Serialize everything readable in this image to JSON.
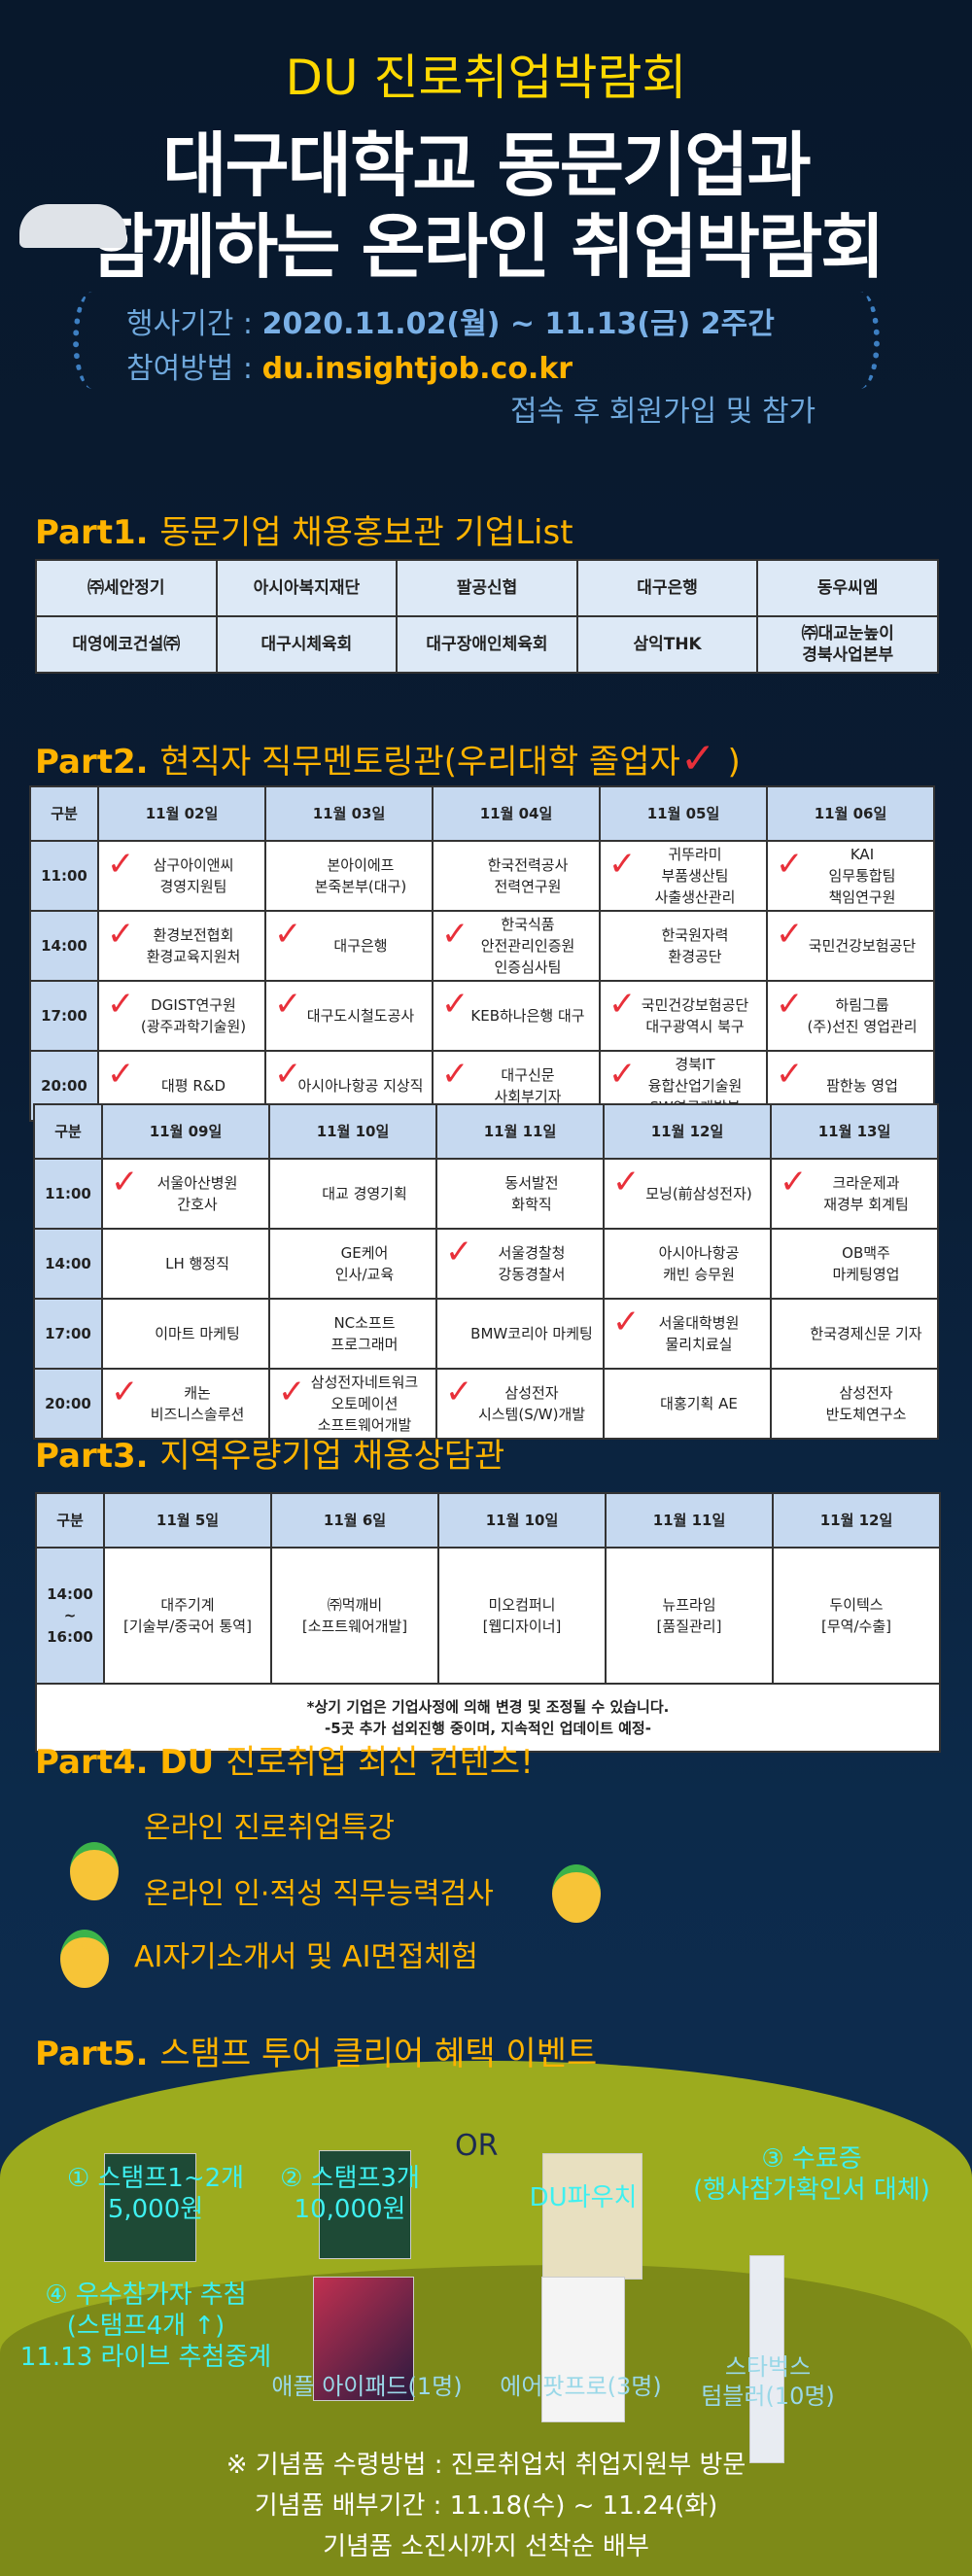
{
  "header": {
    "subtitle": "DU 진로취업박람회",
    "title_line1": "대구대학교 동문기업과",
    "title_line2": "함께하는 온라인 취업박람회",
    "period_label": "행사기간 : ",
    "period_value": "2020.11.02(월) ~ 11.13(금) 2주간",
    "method_label": "참여방법 : ",
    "method_url": "du.insightjob.co.kr",
    "method_note": "접속 후 회원가입 및 참가"
  },
  "part1": {
    "title_bold": "Part1.",
    "title": "동문기업 채용홍보관 기업List",
    "rows": [
      [
        "㈜세안정기",
        "아시아복지재단",
        "팔공신협",
        "대구은행",
        "동우씨엠"
      ],
      [
        "대영에코건설㈜",
        "대구시체육회",
        "대구장애인체육회",
        "삼익THK",
        "㈜대교눈높이 경북사업본부"
      ]
    ]
  },
  "part2": {
    "title_bold": "Part2.",
    "title": "현직자 직무멘토링관(우리대학 졸업자",
    "title_end": ")",
    "check_color": "#e8303a",
    "weeks": [
      {
        "headers": [
          "구분",
          "11월 02일",
          "11월 03일",
          "11월 04일",
          "11월 05일",
          "11월 06일"
        ],
        "rows": [
          {
            "time": "11:00",
            "cells": [
              {
                "t": [
                  "삼구아이앤씨",
                  "경영지원팀"
                ],
                "c": true
              },
              {
                "t": [
                  "본아이에프",
                  "본죽본부(대구)"
                ]
              },
              {
                "t": [
                  "한국전력공사",
                  "전력연구원"
                ]
              },
              {
                "t": [
                  "귀뚜라미",
                  "부품생산팀",
                  "사출생산관리"
                ],
                "c": true
              },
              {
                "t": [
                  "KAI",
                  "임무통합팀",
                  "책임연구원"
                ],
                "c": true
              }
            ]
          },
          {
            "time": "14:00",
            "cells": [
              {
                "t": [
                  "환경보전협회",
                  "환경교육지원처"
                ],
                "c": true
              },
              {
                "t": [
                  "대구은행"
                ],
                "c": true
              },
              {
                "t": [
                  "한국식품",
                  "안전관리인증원",
                  "인증심사팀"
                ],
                "c": true
              },
              {
                "t": [
                  "한국원자력",
                  "환경공단"
                ]
              },
              {
                "t": [
                  "국민건강보험공단"
                ],
                "c": true
              }
            ]
          },
          {
            "time": "17:00",
            "cells": [
              {
                "t": [
                  "DGIST연구원",
                  "(광주과학기술원)"
                ],
                "c": true
              },
              {
                "t": [
                  "대구도시철도공사"
                ],
                "c": true
              },
              {
                "t": [
                  "KEB하나은행 대구"
                ],
                "c": true
              },
              {
                "t": [
                  "국민건강보험공단",
                  "대구광역시 북구"
                ],
                "c": true
              },
              {
                "t": [
                  "하림그룹",
                  "(주)선진 영업관리"
                ],
                "c": true
              }
            ]
          },
          {
            "time": "20:00",
            "cells": [
              {
                "t": [
                  "대평 R&D"
                ],
                "c": true
              },
              {
                "t": [
                  "아시아나항공 지상직"
                ],
                "c": true
              },
              {
                "t": [
                  "대구신문",
                  "사회부기자"
                ],
                "c": true
              },
              {
                "t": [
                  "경북IT",
                  "융합산업기술원",
                  "SW연구개발부"
                ],
                "c": true
              },
              {
                "t": [
                  "팜한농 영업"
                ],
                "c": true
              }
            ]
          }
        ]
      },
      {
        "headers": [
          "구분",
          "11월 09일",
          "11월 10일",
          "11월 11일",
          "11월 12일",
          "11월 13일"
        ],
        "rows": [
          {
            "time": "11:00",
            "cells": [
              {
                "t": [
                  "서울아산병원",
                  "간호사"
                ],
                "c": true
              },
              {
                "t": [
                  "대교 경영기획"
                ]
              },
              {
                "t": [
                  "동서발전",
                  "화학직"
                ]
              },
              {
                "t": [
                  "모닝(前삼성전자)"
                ],
                "c": true
              },
              {
                "t": [
                  "크라운제과",
                  "재경부 회계팀"
                ],
                "c": true
              }
            ]
          },
          {
            "time": "14:00",
            "cells": [
              {
                "t": [
                  "LH 행정직"
                ]
              },
              {
                "t": [
                  "GE케어",
                  "인사/교육"
                ]
              },
              {
                "t": [
                  "서울경찰청 강동경찰서"
                ],
                "c": true
              },
              {
                "t": [
                  "아시아나항공",
                  "캐빈 승무원"
                ]
              },
              {
                "t": [
                  "OB맥주",
                  "마케팅영업"
                ]
              }
            ]
          },
          {
            "time": "17:00",
            "cells": [
              {
                "t": [
                  "이마트 마케팅"
                ]
              },
              {
                "t": [
                  "NC소프트",
                  "프로그래머"
                ]
              },
              {
                "t": [
                  "BMW코리아 마케팅"
                ]
              },
              {
                "t": [
                  "서울대학병원",
                  "물리치료실"
                ],
                "c": true
              },
              {
                "t": [
                  "한국경제신문 기자"
                ]
              }
            ]
          },
          {
            "time": "20:00",
            "cells": [
              {
                "t": [
                  "캐논",
                  "비즈니스솔루션"
                ],
                "c": true
              },
              {
                "t": [
                  "삼성전자네트워크",
                  "오토메이션",
                  "소프트웨어개발"
                ],
                "c": true
              },
              {
                "t": [
                  "삼성전자",
                  "시스템(S/W)개발"
                ],
                "c": true
              },
              {
                "t": [
                  "대홍기획 AE"
                ]
              },
              {
                "t": [
                  "삼성전자",
                  "반도체연구소"
                ]
              }
            ]
          }
        ]
      }
    ]
  },
  "part3": {
    "title_bold": "Part3.",
    "title": "지역우량기업 채용상담관",
    "headers": [
      "구분",
      "11월 5일",
      "11월 6일",
      "11월 10일",
      "11월 11일",
      "11월 12일"
    ],
    "time": [
      "14:00",
      "~",
      "16:00"
    ],
    "cells": [
      [
        "대주기계",
        "[기술부/중국어 통역]"
      ],
      [
        "㈜먹깨비",
        "[소프트웨어개발]"
      ],
      [
        "미오컴퍼니",
        "[웹디자이너]"
      ],
      [
        "뉴프라임",
        "[품질관리]"
      ],
      [
        "두이텍스",
        "[무역/수출]"
      ]
    ],
    "notes": [
      "*상기 기업은 기업사정에 의해 변경 및 조정될 수 있습니다.",
      "-5곳 추가 섭외진행 중이며, 지속적인 업데이트 예정-"
    ]
  },
  "part4": {
    "title_bold": "Part4. DU",
    "title": "진로취업 최신 컨텐츠!",
    "items": [
      "온라인 진로취업특강",
      "온라인 인·적성 직무능력검사",
      "AI자기소개서 및 AI면접체험"
    ]
  },
  "part5": {
    "title_bold": "Part5.",
    "title": "스탬프 투어 클리어 혜택 이벤트",
    "prize1": [
      "① 스탬프1~2개",
      "5,000원"
    ],
    "prize2": [
      "② 스탬프3개",
      "10,000원"
    ],
    "or": "OR",
    "pouch": "DU파우치",
    "prize3": [
      "③ 수료증",
      "(행사참가확인서 대체)"
    ],
    "prize4": [
      "④ 우수참가자 추첨",
      "(스탬프4개 ↑)",
      "11.13 라이브 추첨중계"
    ],
    "products": [
      "애플 아이패드(1명)",
      "에어팟프로(3명)",
      "스타벅스",
      "텀블러(10명)"
    ],
    "notes": [
      "※ 기념품 수령방법 : 진로취업처 취업지원부 방문",
      "기념품 배부기간 : 11.18(수) ~ 11.24(화)",
      "기념품 소진시까지 선착순 배부"
    ]
  }
}
